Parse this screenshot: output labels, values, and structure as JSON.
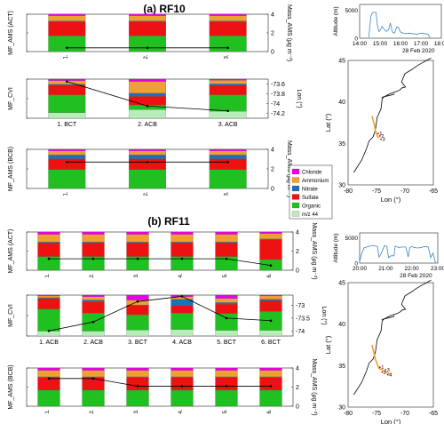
{
  "colors": {
    "Chloride": "#e800e8",
    "Ammonium": "#f0a030",
    "Nitrate": "#2070b8",
    "Sulfate": "#ee1111",
    "Organic": "#1fc01f",
    "m/z 44": "#b8ecb8",
    "line": "#000000",
    "altitude": "#3a86c8",
    "track_rf10": "#f0a030",
    "track_rf11": "#f0a030",
    "coast": "#000000"
  },
  "legend": [
    "Chloride",
    "Ammonium",
    "Nitrate",
    "Sulfate",
    "Organic",
    "m/z 44"
  ],
  "sections": {
    "rf10": {
      "title": "(a) RF10"
    },
    "rf11": {
      "title": "(b) RF11"
    }
  },
  "chart_data": [
    {
      "type": "bar",
      "id": "rf10-act",
      "ylabel": "MF_AMS (ACT)",
      "y2label": "Mass_AMS (μg m⁻³)",
      "categories": [
        "1.",
        "2.",
        "3."
      ],
      "stacked": true,
      "ylim": [
        0,
        1
      ],
      "y2lim": [
        0,
        4
      ],
      "y2ticks": [
        0,
        2,
        4
      ],
      "series": [
        {
          "name": "Organic",
          "values": [
            0.42,
            0.42,
            0.42
          ]
        },
        {
          "name": "Sulfate",
          "values": [
            0.38,
            0.38,
            0.38
          ]
        },
        {
          "name": "Nitrate",
          "values": [
            0.02,
            0.02,
            0.02
          ]
        },
        {
          "name": "Ammonium",
          "values": [
            0.14,
            0.14,
            0.14
          ]
        },
        {
          "name": "Chloride",
          "values": [
            0.04,
            0.04,
            0.04
          ]
        }
      ],
      "line": {
        "values": [
          0.4,
          0.4,
          0.4
        ]
      }
    },
    {
      "type": "bar",
      "id": "rf10-cvi",
      "ylabel": "MF_CVI",
      "y2label": "Lon (°)",
      "categories": [
        "1. BCT",
        "2. ACB",
        "3. ACB"
      ],
      "stacked": true,
      "ylim": [
        0,
        1
      ],
      "y2lim": [
        -74.3,
        -73.5
      ],
      "y2ticks": [
        -73.6,
        -73.8,
        -74,
        -74.2
      ],
      "series": [
        {
          "name": "m/z 44",
          "values": [
            0.14,
            0.22,
            0.18
          ]
        },
        {
          "name": "Organic",
          "values": [
            0.46,
            0.12,
            0.42
          ]
        },
        {
          "name": "Sulfate",
          "values": [
            0.25,
            0.22,
            0.24
          ]
        },
        {
          "name": "Nitrate",
          "values": [
            0.02,
            0.08,
            0.04
          ]
        },
        {
          "name": "Ammonium",
          "values": [
            0.09,
            0.3,
            0.09
          ]
        },
        {
          "name": "Chloride",
          "values": [
            0.04,
            0.06,
            0.03
          ]
        }
      ],
      "line": {
        "values": [
          -73.55,
          -74.05,
          -74.15
        ]
      }
    },
    {
      "type": "bar",
      "id": "rf10-bcb",
      "ylabel": "MF_AMS (BCB)",
      "y2label": "Mass_AMS (μg m⁻³)",
      "categories": [
        "1.",
        "2.",
        "3."
      ],
      "stacked": true,
      "ylim": [
        0,
        1
      ],
      "y2lim": [
        0,
        4
      ],
      "y2ticks": [
        0,
        2,
        4
      ],
      "series": [
        {
          "name": "Organic",
          "values": [
            0.48,
            0.48,
            0.48
          ]
        },
        {
          "name": "Sulfate",
          "values": [
            0.28,
            0.28,
            0.28
          ]
        },
        {
          "name": "Nitrate",
          "values": [
            0.1,
            0.1,
            0.1
          ]
        },
        {
          "name": "Ammonium",
          "values": [
            0.1,
            0.1,
            0.1
          ]
        },
        {
          "name": "Chloride",
          "values": [
            0.04,
            0.04,
            0.04
          ]
        }
      ],
      "line": {
        "values": [
          2.7,
          2.7,
          2.7
        ]
      }
    },
    {
      "type": "bar",
      "id": "rf11-act",
      "ylabel": "MF_AMS (ACT)",
      "y2label": "Mass_AMS (μg m⁻³)",
      "categories": [
        "1.",
        "2.",
        "3.",
        "4.",
        "5.",
        "6."
      ],
      "stacked": true,
      "ylim": [
        0,
        1
      ],
      "y2lim": [
        0,
        4
      ],
      "y2ticks": [
        0,
        2,
        4
      ],
      "series": [
        {
          "name": "Organic",
          "values": [
            0.36,
            0.36,
            0.36,
            0.36,
            0.36,
            0.28
          ]
        },
        {
          "name": "Sulfate",
          "values": [
            0.36,
            0.36,
            0.36,
            0.36,
            0.36,
            0.52
          ]
        },
        {
          "name": "Nitrate",
          "values": [
            0.02,
            0.02,
            0.02,
            0.02,
            0.02,
            0.02
          ]
        },
        {
          "name": "Ammonium",
          "values": [
            0.2,
            0.2,
            0.2,
            0.2,
            0.2,
            0.14
          ]
        },
        {
          "name": "Chloride",
          "values": [
            0.06,
            0.06,
            0.06,
            0.06,
            0.06,
            0.04
          ]
        }
      ],
      "line": {
        "values": [
          1.2,
          1.2,
          1.2,
          1.2,
          1.2,
          0.5
        ]
      }
    },
    {
      "type": "bar",
      "id": "rf11-cvi",
      "ylabel": "MF_CVI",
      "y2label": "Lon (°)",
      "categories": [
        "1. ACB",
        "2. ACB",
        "3. BCT",
        "4. ACB",
        "5. BCT",
        "6. BCT"
      ],
      "stacked": true,
      "ylim": [
        0,
        1
      ],
      "y2lim": [
        -74.2,
        -72.6
      ],
      "y2ticks": [
        -73,
        -73.5,
        -74
      ],
      "series": [
        {
          "name": "m/z 44",
          "values": [
            0.12,
            0.12,
            0.15,
            0.16,
            0.14,
            0.14
          ]
        },
        {
          "name": "Organic",
          "values": [
            0.54,
            0.44,
            0.37,
            0.4,
            0.41,
            0.46
          ]
        },
        {
          "name": "Sulfate",
          "values": [
            0.26,
            0.28,
            0.22,
            0.18,
            0.23,
            0.26
          ]
        },
        {
          "name": "Nitrate",
          "values": [
            0.02,
            0.04,
            0.02,
            0.16,
            0.04,
            0.04
          ]
        },
        {
          "name": "Ammonium",
          "values": [
            0.04,
            0.08,
            0.12,
            0.06,
            0.1,
            0.08
          ]
        },
        {
          "name": "Chloride",
          "values": [
            0.02,
            0.04,
            0.12,
            0.04,
            0.08,
            0.02
          ]
        }
      ],
      "line": {
        "values": [
          -74.0,
          -73.65,
          -72.85,
          -72.65,
          -73.5,
          -73.6
        ]
      }
    },
    {
      "type": "bar",
      "id": "rf11-bcb",
      "ylabel": "MF_AMS (BCB)",
      "y2label": "Mass_AMS (μg m⁻³)",
      "categories": [
        "1.",
        "2.",
        "3.",
        "4.",
        "5.",
        "6."
      ],
      "stacked": true,
      "ylim": [
        0,
        1
      ],
      "y2lim": [
        0,
        4
      ],
      "y2ticks": [
        0,
        2,
        4
      ],
      "series": [
        {
          "name": "Organic",
          "values": [
            0.42,
            0.42,
            0.42,
            0.42,
            0.42,
            0.42
          ]
        },
        {
          "name": "Sulfate",
          "values": [
            0.33,
            0.33,
            0.33,
            0.33,
            0.33,
            0.33
          ]
        },
        {
          "name": "Nitrate",
          "values": [
            0.02,
            0.02,
            0.02,
            0.02,
            0.02,
            0.02
          ]
        },
        {
          "name": "Ammonium",
          "values": [
            0.17,
            0.17,
            0.17,
            0.17,
            0.17,
            0.17
          ]
        },
        {
          "name": "Chloride",
          "values": [
            0.06,
            0.06,
            0.06,
            0.06,
            0.06,
            0.06
          ]
        }
      ],
      "line": {
        "values": [
          2.9,
          2.9,
          2.1,
          2.1,
          2.1,
          2.1
        ]
      }
    },
    {
      "type": "line",
      "id": "rf10-alt",
      "ylabel": "Altitude (m)",
      "xlabel": "28 Feb 2020",
      "xticks": [
        "14:00",
        "15:00",
        "16:00",
        "17:00",
        "18:00"
      ],
      "xlim": [
        0,
        4
      ],
      "ylim": [
        0,
        6000
      ],
      "yticks": [
        0,
        5000
      ],
      "x": [
        0.45,
        0.55,
        0.62,
        0.7,
        0.8,
        0.88,
        0.95,
        1.0,
        1.1,
        1.2,
        1.3,
        1.42,
        1.5,
        1.6,
        1.7,
        1.82,
        1.9,
        2.0,
        2.2,
        2.4,
        2.6,
        2.8,
        3.0,
        3.2,
        3.35,
        3.45
      ],
      "y": [
        200,
        3900,
        4500,
        4600,
        4600,
        2000,
        1200,
        1400,
        2100,
        1600,
        1200,
        1500,
        2700,
        1100,
        900,
        2000,
        1900,
        1100,
        800,
        900,
        800,
        700,
        900,
        800,
        700,
        100
      ]
    },
    {
      "type": "line",
      "id": "rf11-alt",
      "ylabel": "Altitude (m)",
      "xlabel": "28 Feb 2020",
      "xticks": [
        "20:00",
        "21:00",
        "22:00",
        "23:00"
      ],
      "xlim": [
        0,
        3.3
      ],
      "ylim": [
        0,
        6000
      ],
      "yticks": [
        0,
        5000
      ],
      "x": [
        0.0,
        0.08,
        0.18,
        0.3,
        0.45,
        0.6,
        0.75,
        0.82,
        0.9,
        1.05,
        1.15,
        1.22,
        1.35,
        1.45,
        1.5,
        1.65,
        1.8,
        1.95,
        2.05,
        2.12,
        2.2,
        2.3,
        2.45,
        2.6,
        2.75,
        2.9,
        3.0,
        3.1,
        3.2
      ],
      "y": [
        300,
        1800,
        3000,
        3200,
        3400,
        3500,
        3300,
        1200,
        1800,
        3500,
        3300,
        1100,
        1500,
        1400,
        3400,
        3100,
        3200,
        3200,
        1200,
        3100,
        3300,
        3100,
        3000,
        3100,
        3300,
        3200,
        1100,
        2000,
        100
      ]
    },
    {
      "type": "scatter",
      "id": "rf10-map",
      "xlabel": "Lon (°)",
      "ylabel": "Lat (°)",
      "xlim": [
        -80,
        -65
      ],
      "ylim": [
        30,
        45
      ],
      "xticks": [
        -80,
        -75,
        -70,
        -65
      ],
      "yticks": [
        30,
        35,
        40,
        45
      ],
      "track": {
        "x": [
          -75.8,
          -75.4,
          -75.2,
          -74.9,
          -74.8,
          -74.5
        ],
        "y": [
          38.3,
          37.3,
          36.5,
          36.0,
          35.8,
          35.7
        ]
      },
      "points": [
        {
          "label": "1",
          "x": -74.7,
          "y": 36.2
        },
        {
          "label": "2",
          "x": -74.4,
          "y": 35.9
        },
        {
          "label": "3",
          "x": -74.2,
          "y": 35.5
        }
      ]
    },
    {
      "type": "scatter",
      "id": "rf11-map",
      "xlabel": "Lon (°)",
      "ylabel": "Lat (°)",
      "xlim": [
        -80,
        -65
      ],
      "ylim": [
        30,
        45
      ],
      "xticks": [
        -80,
        -75,
        -70,
        -65
      ],
      "yticks": [
        30,
        35,
        40,
        45
      ],
      "track": {
        "x": [
          -75.8,
          -75.2,
          -74.6,
          -73.8,
          -73.0,
          -72.4
        ],
        "y": [
          37.5,
          35.8,
          34.7,
          34.4,
          34.1,
          34.0
        ]
      },
      "points": [
        {
          "label": "1",
          "x": -74.4,
          "y": 34.8
        },
        {
          "label": "2",
          "x": -74.0,
          "y": 34.2
        },
        {
          "label": "3",
          "x": -73.4,
          "y": 34.5
        },
        {
          "label": "4",
          "x": -73.0,
          "y": 33.9
        }
      ]
    }
  ]
}
